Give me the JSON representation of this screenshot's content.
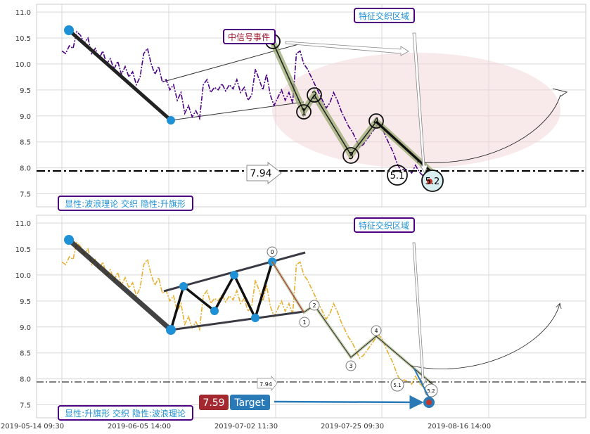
{
  "chart_data": [
    {
      "type": "line",
      "panel": "top",
      "ylim": [
        7.25,
        11.15
      ],
      "yticks": [
        "7.5",
        "8.0",
        "8.5",
        "9.0",
        "9.5",
        "10.0",
        "10.5",
        "11.0"
      ],
      "grid": true,
      "line_color": "#4b0082",
      "series": [
        {
          "values": [
            10.25,
            10.2,
            10.35,
            10.3,
            10.62,
            10.55,
            10.4,
            10.5,
            10.2,
            10.3,
            10.1,
            10.25,
            10.0,
            10.1,
            9.9,
            10.05,
            9.8,
            9.95,
            9.75,
            9.85,
            9.6,
            9.75,
            10.2,
            10.3,
            10.0,
            9.8,
            9.95,
            9.65,
            9.7,
            9.5,
            9.6,
            9.3,
            9.45,
            9.05,
            9.2,
            8.98,
            9.1,
            8.95,
            9.6,
            9.7,
            9.45,
            9.55,
            9.5,
            9.62,
            9.48,
            9.6,
            9.52,
            9.7,
            9.45,
            9.55,
            9.3,
            9.4,
            9.9,
            9.7,
            9.5,
            9.8,
            9.4,
            9.2,
            9.35,
            9.5,
            9.3,
            9.45,
            9.25,
            10.2,
            10.25,
            10.0,
            9.9,
            9.75,
            9.6,
            9.45,
            9.3,
            9.15,
            9.25,
            9.45,
            9.3,
            9.1,
            8.95,
            8.8,
            8.7,
            8.55,
            8.4,
            8.45,
            8.55,
            8.65,
            8.75,
            8.85,
            8.78,
            8.6,
            8.45,
            8.3,
            8.1,
            7.95,
            7.98,
            7.95,
            7.9,
            8.05,
            7.92,
            7.85,
            7.82,
            7.85
          ]
        }
      ],
      "level_line": 7.94,
      "level_label": "7.94",
      "annotations": {
        "top_box": "特征交织区域",
        "event_box": "中信号事件",
        "bottom_box": "显性:波浪理论 交织 隐性:升旗形"
      },
      "wave_labels": [
        "0",
        "1",
        "2",
        "3",
        "4",
        "5.1",
        "5.2"
      ]
    },
    {
      "type": "line",
      "panel": "bottom",
      "ylim": [
        7.25,
        11.15
      ],
      "yticks": [
        "7.5",
        "8.0",
        "8.5",
        "9.0",
        "9.5",
        "10.0",
        "10.5",
        "11.0"
      ],
      "xticks": [
        "2019-05-14 09:30",
        "2019-06-05 14:00",
        "2019-07-02 11:30",
        "2019-07-25 09:30",
        "2019-08-16 14:00"
      ],
      "grid": true,
      "line_color": "#e8b030",
      "level_line": 7.94,
      "level_label": "7.94",
      "target_value": "7.59",
      "target_label": "Target",
      "wave_labels": [
        "0",
        "1",
        "2",
        "3",
        "4",
        "5.1",
        "5.2"
      ],
      "annotations": {
        "top_box": "特征交织区域",
        "bottom_box": "显性:升旗形 交织 隐性:波浪理论"
      }
    }
  ]
}
